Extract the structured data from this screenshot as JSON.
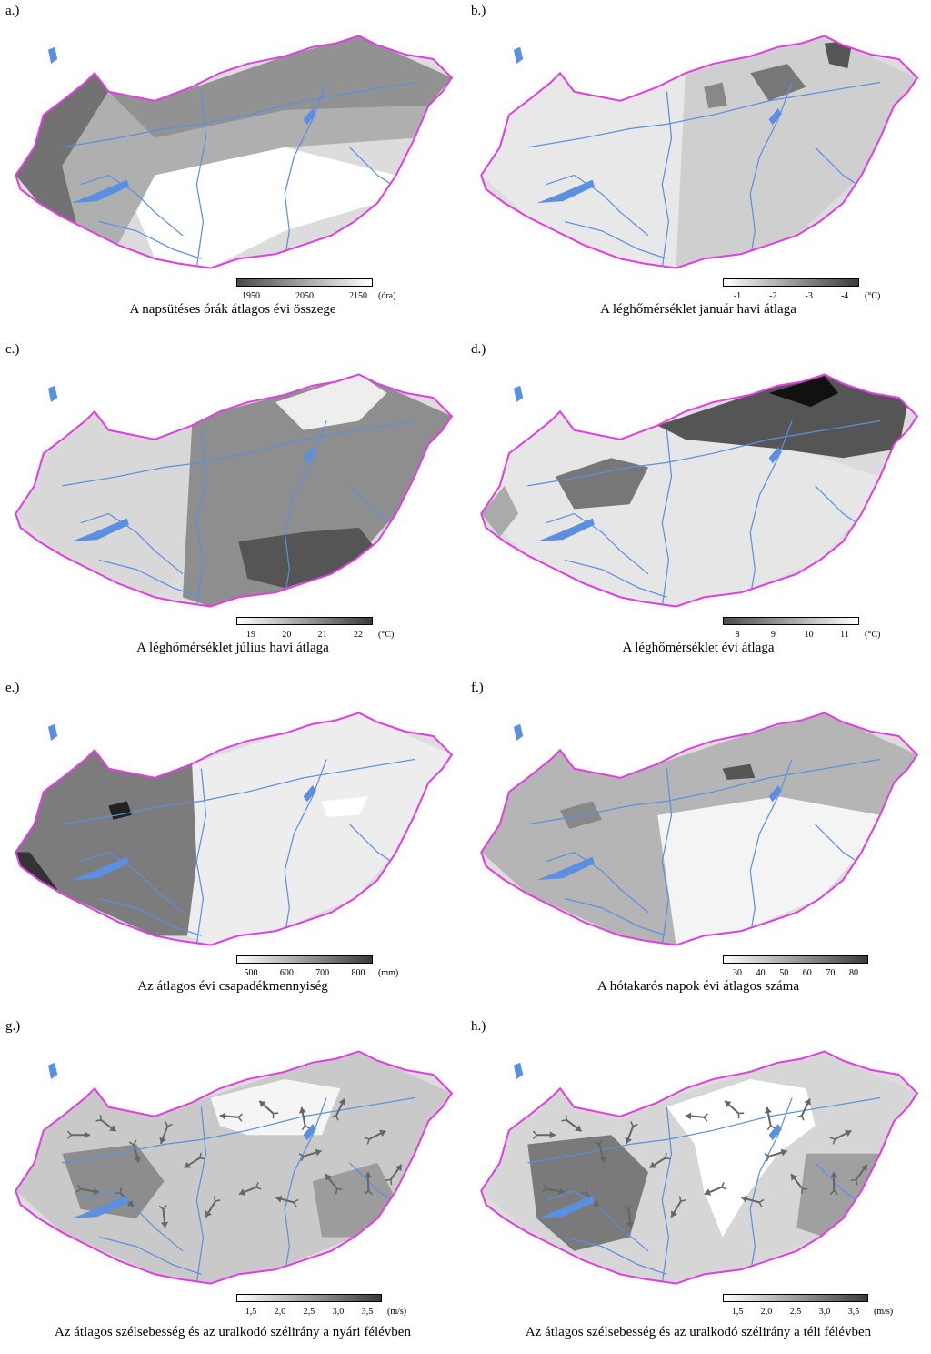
{
  "panels": [
    {
      "label": "a.)",
      "caption": "A napsütéses órák átlagos évi összege",
      "legend": {
        "ticks": [
          "1950",
          "2050",
          "2150"
        ],
        "unit": "(óra)",
        "gradient": "dark-to-light"
      },
      "shading": "sunshine"
    },
    {
      "label": "b.)",
      "caption": "A léghőmérséklet január havi átlaga",
      "legend": {
        "ticks": [
          "-1",
          "-2",
          "-3",
          "-4"
        ],
        "unit": "(°C)",
        "gradient": "light-to-dark"
      },
      "shading": "january"
    },
    {
      "label": "c.)",
      "caption": "A léghőmérséklet július havi átlaga",
      "legend": {
        "ticks": [
          "19",
          "20",
          "21",
          "22"
        ],
        "unit": "(°C)",
        "gradient": "light-to-dark"
      },
      "shading": "july"
    },
    {
      "label": "d.)",
      "caption": "A léghőmérséklet évi átlaga",
      "legend": {
        "ticks": [
          "8",
          "9",
          "10",
          "11"
        ],
        "unit": "(°C)",
        "gradient": "dark-to-light"
      },
      "shading": "annual"
    },
    {
      "label": "e.)",
      "caption": "Az átlagos évi csapadékmennyiség",
      "legend": {
        "ticks": [
          "500",
          "600",
          "700",
          "800"
        ],
        "unit": "(mm)",
        "gradient": "light-to-dark"
      },
      "shading": "precip"
    },
    {
      "label": "f.)",
      "caption": "A hótakarós napok évi átlagos száma",
      "legend": {
        "ticks": [
          "30",
          "40",
          "50",
          "60",
          "70",
          "80"
        ],
        "unit": "",
        "gradient": "light-to-dark"
      },
      "shading": "snow"
    },
    {
      "label": "g.)",
      "caption": "Az átlagos szélsebesség és az uralkodó szélirány a nyári félévben",
      "legend": {
        "ticks": [
          "1,5",
          "2,0",
          "2,5",
          "3,0",
          "3,5"
        ],
        "unit": "(m/s)",
        "gradient": "light-to-dark"
      },
      "shading": "wind-summer"
    },
    {
      "label": "h.)",
      "caption": "Az átlagos szélsebesség és az uralkodó szélirány a téli félévben",
      "legend": {
        "ticks": [
          "1,5",
          "2,0",
          "2,5",
          "3,0",
          "3,5"
        ],
        "unit": "(m/s)",
        "gradient": "light-to-dark"
      },
      "shading": "wind-winter"
    }
  ],
  "colors": {
    "border": "#e040e0",
    "rivers": "#5b8fe0",
    "lakes": "#5b8fe0"
  }
}
